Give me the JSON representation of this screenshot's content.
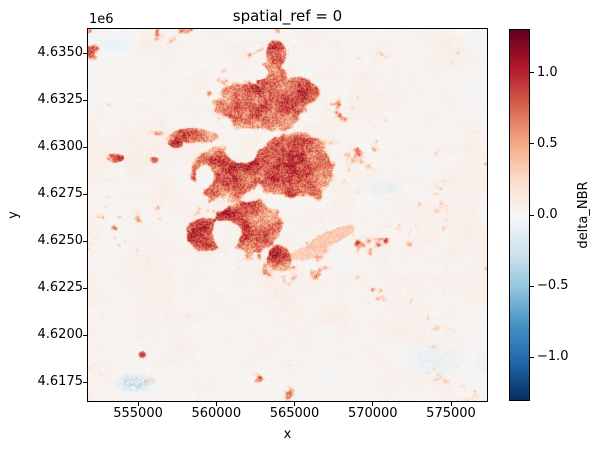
{
  "chart_data": {
    "type": "heatmap",
    "title": "spatial_ref = 0",
    "xlabel": "x",
    "ylabel": "y",
    "y_offset_text": "1e6",
    "xlim": [
      551800,
      577300
    ],
    "ylim": [
      4616500,
      4636300
    ],
    "x_ticks": [
      {
        "value": 555000,
        "label": "555000"
      },
      {
        "value": 560000,
        "label": "560000"
      },
      {
        "value": 565000,
        "label": "565000"
      },
      {
        "value": 570000,
        "label": "570000"
      },
      {
        "value": 575000,
        "label": "575000"
      }
    ],
    "y_ticks": [
      {
        "value": 4635000,
        "label": "4.6350"
      },
      {
        "value": 4632500,
        "label": "4.6325"
      },
      {
        "value": 4630000,
        "label": "4.6300"
      },
      {
        "value": 4627500,
        "label": "4.6275"
      },
      {
        "value": 4625000,
        "label": "4.6250"
      },
      {
        "value": 4622500,
        "label": "4.6225"
      },
      {
        "value": 4620000,
        "label": "4.6200"
      },
      {
        "value": 4617500,
        "label": "4.6175"
      }
    ],
    "colorbar": {
      "label": "delta_NBR",
      "vmin": -1.3,
      "vmax": 1.3,
      "ticks": [
        {
          "value": 1.0,
          "label": "1.0"
        },
        {
          "value": 0.5,
          "label": "0.5"
        },
        {
          "value": 0.0,
          "label": "0.0"
        },
        {
          "value": -0.5,
          "label": "−0.5"
        },
        {
          "value": -1.0,
          "label": "−1.0"
        }
      ],
      "colormap": "RdBu_r",
      "colormap_stops": [
        "#053061",
        "#2166ac",
        "#4393c3",
        "#92c5de",
        "#d1e5f0",
        "#f7f7f7",
        "#fddbc7",
        "#f4a582",
        "#d6604d",
        "#b2182b",
        "#67001f"
      ]
    },
    "raster": {
      "description": "delta NBR burn-severity raster: pale pink/white background near 0 with scattered pale blue patches; large irregular dark-red burn scar (values ~0.4-1.2) in the upper-centre with unburned white holes inside, small satellite burn patches to the west, and a faint orange tail to the lower right",
      "background_value_range": [
        -0.15,
        0.2
      ],
      "burn_value_range": [
        0.3,
        1.25
      ],
      "burn_blobs": [
        [
          0.47,
          0.068,
          0.028,
          0.045
        ],
        [
          0.455,
          0.13,
          0.05,
          0.045
        ],
        [
          0.435,
          0.21,
          0.135,
          0.085
        ],
        [
          0.53,
          0.17,
          0.06,
          0.05
        ],
        [
          0.51,
          0.37,
          0.115,
          0.105
        ],
        [
          0.345,
          0.39,
          0.095,
          0.088
        ],
        [
          0.41,
          0.525,
          0.1,
          0.078
        ],
        [
          0.295,
          0.555,
          0.06,
          0.052
        ],
        [
          0.27,
          0.285,
          0.072,
          0.024
        ],
        [
          0.48,
          0.612,
          0.035,
          0.042
        ],
        [
          0.068,
          0.345,
          0.03,
          0.016
        ],
        [
          0.165,
          0.35,
          0.013,
          0.01
        ],
        [
          0.218,
          0.306,
          0.022,
          0.014
        ]
      ],
      "holes": [
        [
          0.38,
          0.335,
          0.042,
          0.033
        ],
        [
          0.345,
          0.548,
          0.05,
          0.042
        ],
        [
          0.295,
          0.392,
          0.028,
          0.038
        ],
        [
          0.428,
          0.115,
          0.028,
          0.022
        ],
        [
          0.553,
          0.492,
          0.028,
          0.026
        ]
      ],
      "light_features": [
        [
          0.612,
          0.557,
          0.085,
          0.022,
          0.34,
          -25
        ],
        [
          0.548,
          0.6,
          0.055,
          0.02,
          0.3,
          -15
        ]
      ],
      "spot_features": [
        [
          0.135,
          0.874,
          0.01,
          0.009,
          0.95
        ]
      ],
      "blue_patches": [
        [
          0.115,
          0.95,
          0.055,
          0.03,
          -0.4
        ],
        [
          0.74,
          0.425,
          0.055,
          0.03,
          -0.16
        ],
        [
          0.87,
          0.89,
          0.09,
          0.05,
          -0.14
        ]
      ]
    }
  }
}
